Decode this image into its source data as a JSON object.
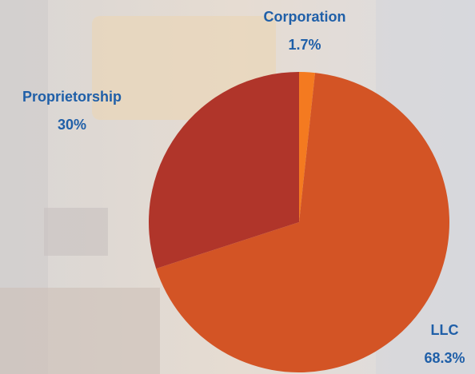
{
  "chart_data": {
    "type": "pie",
    "categories": [
      "Corporation",
      "LLC",
      "Proprietorship"
    ],
    "values": [
      1.7,
      68.3,
      30
    ],
    "value_labels": [
      "1.7%",
      "68.3%",
      "30%"
    ],
    "colors": [
      "#f47a20",
      "#d35425",
      "#b0352a"
    ]
  }
}
